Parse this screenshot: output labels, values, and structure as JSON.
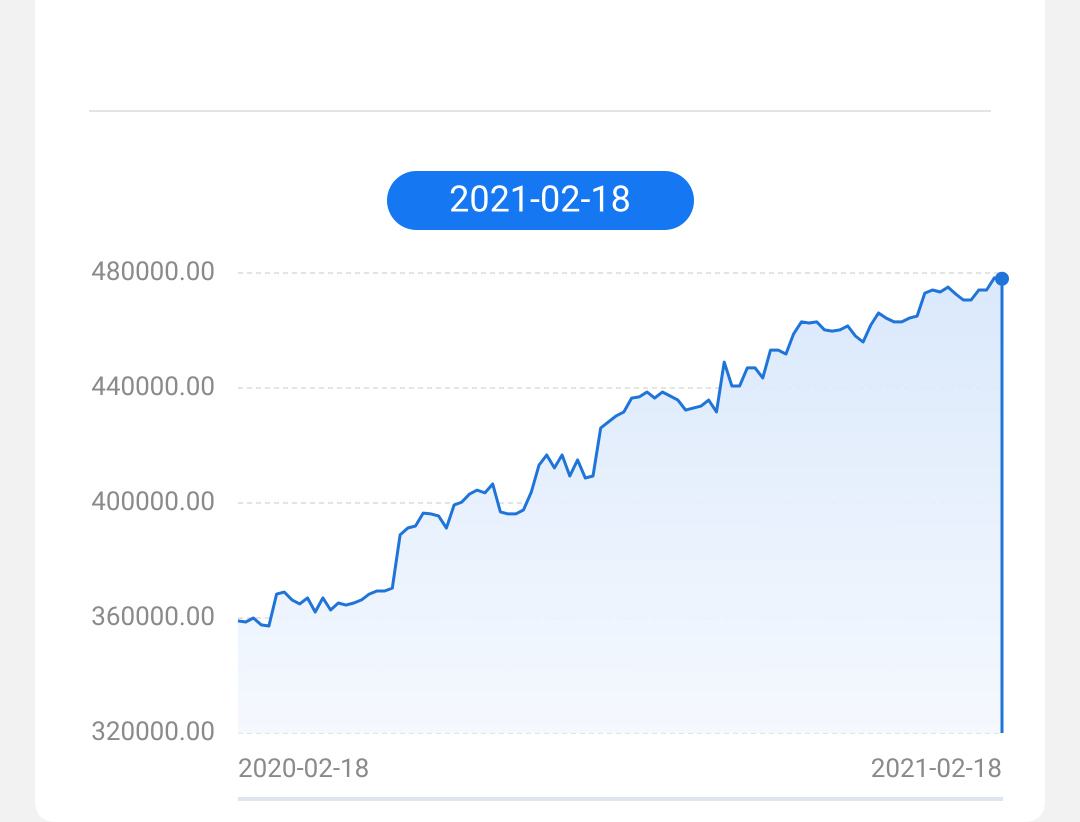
{
  "chart_data": {
    "type": "line",
    "highlight_label": "2021-02-18",
    "x": [
      "2020-02-18",
      null,
      null,
      null,
      null,
      null,
      null,
      null,
      null,
      null,
      null,
      null,
      null,
      null,
      null,
      null,
      null,
      null,
      null,
      null,
      null,
      null,
      null,
      null,
      null,
      null,
      null,
      null,
      null,
      null,
      null,
      null,
      null,
      null,
      null,
      null,
      null,
      null,
      null,
      null,
      null,
      null,
      null,
      null,
      null,
      null,
      null,
      null,
      null,
      null,
      null,
      null,
      null,
      null,
      null,
      null,
      null,
      null,
      null,
      null,
      null,
      null,
      null,
      null,
      null,
      null,
      null,
      null,
      null,
      null,
      null,
      null,
      null,
      null,
      null,
      null,
      null,
      null,
      null,
      null,
      null,
      null,
      null,
      null,
      null,
      null,
      null,
      null,
      null,
      null,
      null,
      null,
      null,
      null,
      null,
      null,
      null,
      null,
      null,
      "2021-02-18"
    ],
    "series": [
      {
        "color": "#1f74d9",
        "values": [
          359000,
          358600,
          360000,
          357600,
          357200,
          368300,
          369000,
          366300,
          364900,
          367000,
          362100,
          367000,
          362800,
          365200,
          364500,
          365200,
          366300,
          368300,
          369400,
          369400,
          370400,
          388900,
          391300,
          392000,
          396500,
          396200,
          395500,
          391300,
          399300,
          400300,
          403100,
          404500,
          403500,
          406600,
          396900,
          396200,
          396200,
          397600,
          403800,
          413200,
          416700,
          412200,
          416700,
          409400,
          415000,
          408700,
          409400,
          426100,
          428200,
          430300,
          431700,
          436500,
          436900,
          438600,
          436500,
          438600,
          437200,
          435800,
          432300,
          433000,
          433700,
          435800,
          431700,
          449000,
          440700,
          440700,
          447000,
          447000,
          443500,
          453200,
          453200,
          451800,
          458800,
          463000,
          462600,
          463000,
          460200,
          459800,
          460200,
          461600,
          458100,
          456000,
          461900,
          466100,
          464300,
          463000,
          463000,
          464300,
          465000,
          473000,
          474100,
          473400,
          475100,
          472700,
          470600,
          470600,
          474100,
          474100,
          478300,
          478000
        ]
      }
    ],
    "ylim": [
      320000,
      480000
    ],
    "yticks": [
      {
        "value": 480000,
        "label": "480000.00"
      },
      {
        "value": 440000,
        "label": "440000.00"
      },
      {
        "value": 400000,
        "label": "400000.00"
      },
      {
        "value": 360000,
        "label": "360000.00"
      },
      {
        "value": 320000,
        "label": "320000.00"
      }
    ],
    "grid": true
  }
}
